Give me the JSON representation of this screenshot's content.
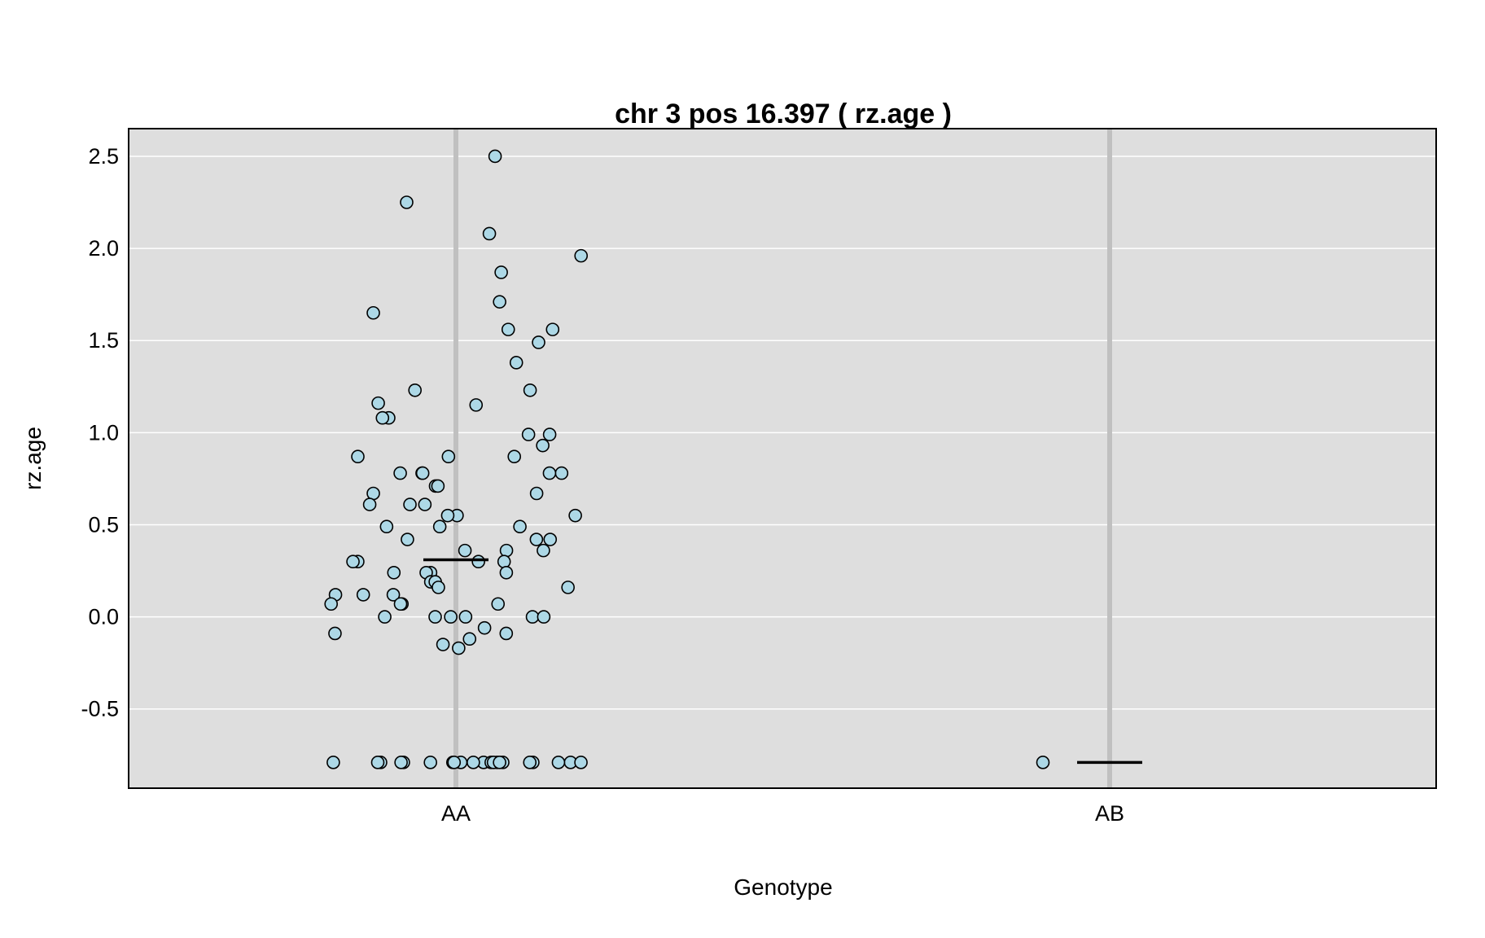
{
  "chart_data": {
    "type": "scatter",
    "title": "chr 3 pos 16.397 ( rz.age )",
    "xlabel": "Genotype",
    "ylabel": "rz.age",
    "categories": [
      "AA",
      "AB"
    ],
    "ylim": [
      -0.93,
      2.65
    ],
    "yticks": [
      "2.5",
      "2.0",
      "1.5",
      "1.0",
      "0.5",
      "0.0",
      "-0.5"
    ],
    "ytick_values": [
      2.5,
      2.0,
      1.5,
      1.0,
      0.5,
      0.0,
      -0.5
    ],
    "grid": true,
    "colors": {
      "panel": "#dedede",
      "gridline": "#ffffff",
      "category_line": "#c0c0c0",
      "point_fill": "#add8e6",
      "point_stroke": "#000000",
      "mean_line": "#000000"
    },
    "series": [
      {
        "category": "AA",
        "mean": 0.31,
        "values": [
          2.5,
          2.25,
          2.08,
          1.96,
          1.87,
          1.71,
          1.65,
          1.56,
          1.56,
          1.49,
          1.38,
          1.23,
          1.23,
          1.16,
          1.15,
          1.08,
          1.08,
          0.99,
          0.99,
          0.93,
          0.87,
          0.87,
          0.87,
          0.78,
          0.78,
          0.78,
          0.78,
          0.78,
          0.71,
          0.71,
          0.67,
          0.67,
          0.61,
          0.61,
          0.61,
          0.55,
          0.55,
          0.55,
          0.49,
          0.49,
          0.49,
          0.42,
          0.42,
          0.42,
          0.36,
          0.36,
          0.36,
          0.3,
          0.3,
          0.3,
          0.3,
          0.24,
          0.24,
          0.24,
          0.24,
          0.19,
          0.19,
          0.16,
          0.16,
          0.12,
          0.12,
          0.12,
          0.07,
          0.07,
          0.07,
          0.07,
          0.0,
          0.0,
          0.0,
          0.0,
          0.0,
          0.0,
          -0.06,
          -0.09,
          -0.09,
          -0.12,
          -0.15,
          -0.17,
          -0.79,
          -0.79,
          -0.79,
          -0.79,
          -0.79,
          -0.79,
          -0.79,
          -0.79,
          -0.79,
          -0.79,
          -0.79,
          -0.79,
          -0.79,
          -0.79,
          -0.79,
          -0.79,
          -0.79,
          -0.79,
          -0.79,
          -0.79,
          -0.79
        ]
      },
      {
        "category": "AB",
        "mean": -0.79,
        "values": [
          -0.79
        ]
      }
    ]
  }
}
